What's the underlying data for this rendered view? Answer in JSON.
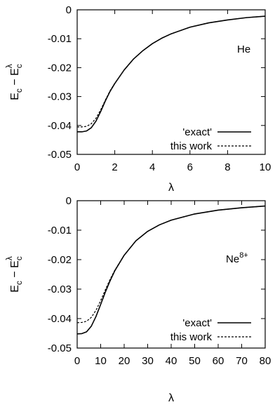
{
  "chart_data": [
    {
      "type": "line",
      "annotation": "He",
      "xlabel": "λ",
      "ylabel": {
        "base": "E",
        "sub": "c",
        "minus": " − ",
        "base2": "E",
        "sub2": "c",
        "sup2": "λ"
      },
      "xlim": [
        0,
        10
      ],
      "ylim": [
        -0.05,
        0
      ],
      "xticks": [
        0,
        2,
        4,
        6,
        8,
        10
      ],
      "xtick_labels": [
        "0",
        "2",
        "4",
        "6",
        "8",
        "10"
      ],
      "yticks": [
        0,
        -0.01,
        -0.02,
        -0.03,
        -0.04,
        -0.05
      ],
      "ytick_labels": [
        "0",
        "-0.01",
        "-0.02",
        "-0.03",
        "-0.04",
        "-0.05"
      ],
      "grid": false,
      "legend_position": "bottom-right",
      "series": [
        {
          "name": "'exact'",
          "style": "solid",
          "color": "#000000",
          "x": [
            0,
            0.25,
            0.5,
            0.75,
            1,
            1.25,
            1.5,
            1.75,
            2,
            2.5,
            3,
            3.5,
            4,
            4.5,
            5,
            6,
            7,
            8,
            9,
            10
          ],
          "y": [
            -0.0422,
            -0.0422,
            -0.0419,
            -0.0408,
            -0.0385,
            -0.0352,
            -0.0315,
            -0.0282,
            -0.0255,
            -0.0208,
            -0.017,
            -0.0141,
            -0.0117,
            -0.0098,
            -0.0083,
            -0.006,
            -0.0045,
            -0.0035,
            -0.0027,
            -0.0022
          ]
        },
        {
          "name": "this work",
          "style": "dashed",
          "color": "#000000",
          "x": [
            0,
            0.25,
            0.5,
            0.75,
            1,
            1.25,
            1.5,
            1.75,
            2,
            2.5,
            3,
            3.5,
            4,
            4.5,
            5,
            6,
            7,
            8,
            9,
            10
          ],
          "y": [
            -0.0405,
            -0.0405,
            -0.0403,
            -0.0394,
            -0.0375,
            -0.0346,
            -0.0312,
            -0.028,
            -0.0254,
            -0.0208,
            -0.017,
            -0.0141,
            -0.0117,
            -0.0098,
            -0.0083,
            -0.006,
            -0.0045,
            -0.0035,
            -0.0027,
            -0.0022
          ]
        }
      ]
    },
    {
      "type": "line",
      "annotation": "Ne",
      "annotation_sup": "8+",
      "xlabel": "λ",
      "ylabel": {
        "base": "E",
        "sub": "c",
        "minus": " − ",
        "base2": "E",
        "sub2": "c",
        "sup2": "λ"
      },
      "xlim": [
        0,
        80
      ],
      "ylim": [
        -0.05,
        0
      ],
      "xticks": [
        0,
        10,
        20,
        30,
        40,
        50,
        60,
        70,
        80
      ],
      "xtick_labels": [
        "0",
        "10",
        "20",
        "30",
        "40",
        "50",
        "60",
        "70",
        "80"
      ],
      "yticks": [
        0,
        -0.01,
        -0.02,
        -0.03,
        -0.04,
        -0.05
      ],
      "ytick_labels": [
        "0",
        "-0.01",
        "-0.02",
        "-0.03",
        "-0.04",
        "-0.05"
      ],
      "grid": false,
      "legend_position": "bottom-right",
      "series": [
        {
          "name": "'exact'",
          "style": "solid",
          "color": "#000000",
          "x": [
            0,
            2,
            4,
            6,
            8,
            10,
            12,
            14,
            16,
            20,
            25,
            30,
            35,
            40,
            50,
            60,
            70,
            80
          ],
          "y": [
            -0.0452,
            -0.0451,
            -0.0445,
            -0.0426,
            -0.0393,
            -0.0352,
            -0.031,
            -0.0272,
            -0.0238,
            -0.0185,
            -0.0136,
            -0.0104,
            -0.0082,
            -0.0066,
            -0.0045,
            -0.0032,
            -0.0024,
            -0.0018
          ]
        },
        {
          "name": "this work",
          "style": "dashed",
          "color": "#000000",
          "x": [
            0,
            2,
            4,
            6,
            8,
            10,
            12,
            14,
            16,
            20,
            25,
            30,
            35,
            40,
            50,
            60,
            70,
            80
          ],
          "y": [
            -0.0414,
            -0.0413,
            -0.0409,
            -0.0396,
            -0.0372,
            -0.0339,
            -0.0302,
            -0.0267,
            -0.0236,
            -0.0185,
            -0.0136,
            -0.0104,
            -0.0082,
            -0.0066,
            -0.0045,
            -0.0032,
            -0.0024,
            -0.0018
          ]
        }
      ]
    }
  ]
}
